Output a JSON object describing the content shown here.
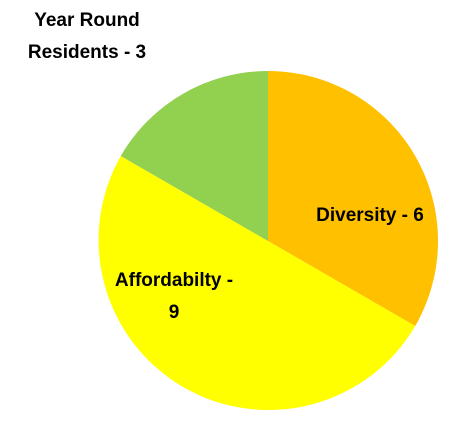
{
  "chart_data": {
    "type": "pie",
    "title": "",
    "slices": [
      {
        "label": "Diversity - 6",
        "value": 6,
        "color": "#FFC000"
      },
      {
        "label": "Affordabilty - 9",
        "value": 9,
        "color": "#FFFF00"
      },
      {
        "label": "Year Round Residents - 3",
        "value": 3,
        "color": "#92D050"
      }
    ],
    "start_angle_deg": 0,
    "direction": "clockwise",
    "legend": "none"
  }
}
